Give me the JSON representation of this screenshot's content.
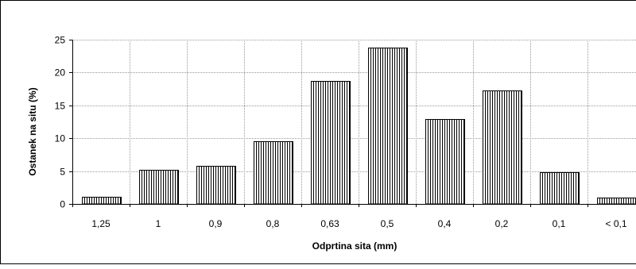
{
  "chart_data": {
    "type": "bar",
    "categories": [
      "1,25",
      "1",
      "0,9",
      "0,8",
      "0,63",
      "0,5",
      "0,4",
      "0,2",
      "0,1",
      "< 0,1"
    ],
    "values": [
      1.1,
      5.2,
      5.8,
      9.5,
      18.7,
      23.8,
      12.9,
      17.3,
      4.8,
      1.0
    ],
    "title": "",
    "xlabel": "Odprtina sita  (mm)",
    "ylabel": "Ostanek na situ  (%)",
    "ylim": [
      0,
      25
    ],
    "yticks": [
      0,
      5,
      10,
      15,
      20,
      25
    ],
    "grid": true,
    "legend": "none",
    "bar_fill": "vertical-hatch",
    "colors": {
      "bar_stroke": "#000000",
      "bar_fill": "#ffffff",
      "grid": "#9a9a9a"
    }
  }
}
